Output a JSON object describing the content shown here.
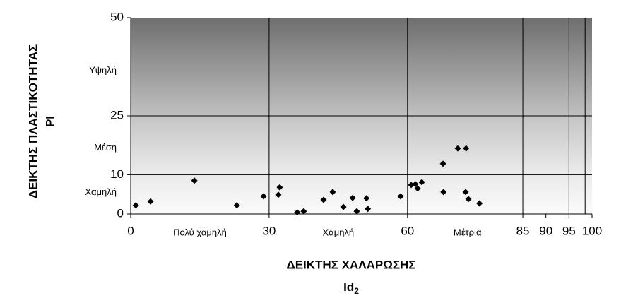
{
  "chart_data": {
    "type": "scatter",
    "y_label": "ΔΕΙΚΤΗΣ ΠΛΑΣΤΙΚΟΤΗΤΑΣ",
    "y_label_2": "PI",
    "x_label": "ΔΕΙΚΤΗΣ ΧΑΛΑΡΩΣΗΣ",
    "x_label_2": {
      "main": "Id",
      "sub": "2"
    },
    "xlim": [
      0,
      100
    ],
    "ylim": [
      0,
      50
    ],
    "xticks": [
      0,
      30,
      60,
      85,
      90,
      95,
      100
    ],
    "yticks": [
      0,
      10,
      25,
      50
    ],
    "x_grid_lines": [
      30,
      60,
      85,
      95,
      98.5
    ],
    "y_grid_lines": [
      10,
      25
    ],
    "y_annotations": [
      {
        "text": "Χαμηλή",
        "y": 5.5
      },
      {
        "text": "Μέση",
        "y": 16.8
      },
      {
        "text": "Υψηλή",
        "y": 36.5
      }
    ],
    "x_annotations": [
      {
        "text": "Πολύ χαμηλή",
        "x": 15
      },
      {
        "text": "Χαμηλή",
        "x": 45
      },
      {
        "text": "Μέτρια",
        "x": 73
      }
    ],
    "color": "#000000",
    "series": [
      {
        "name": "PI",
        "color": "#000000",
        "x": [
          1.1,
          4.3,
          13.8,
          23.0,
          28.8,
          32.0,
          32.3,
          36.1,
          37.5,
          41.8,
          43.8,
          46.1,
          48.1,
          49.0,
          51.1,
          51.4,
          58.5,
          60.8,
          61.7,
          62.2,
          63.1,
          67.7,
          67.8,
          70.9,
          72.7,
          72.6,
          73.2,
          75.6
        ],
        "values": [
          2.2,
          3.2,
          8.5,
          2.2,
          4.5,
          4.9,
          6.8,
          0.4,
          0.7,
          3.6,
          5.6,
          1.8,
          4.1,
          0.7,
          4.0,
          1.3,
          4.5,
          7.4,
          7.6,
          6.5,
          8.1,
          12.8,
          5.6,
          16.7,
          16.7,
          5.6,
          3.8,
          2.7
        ]
      }
    ]
  }
}
